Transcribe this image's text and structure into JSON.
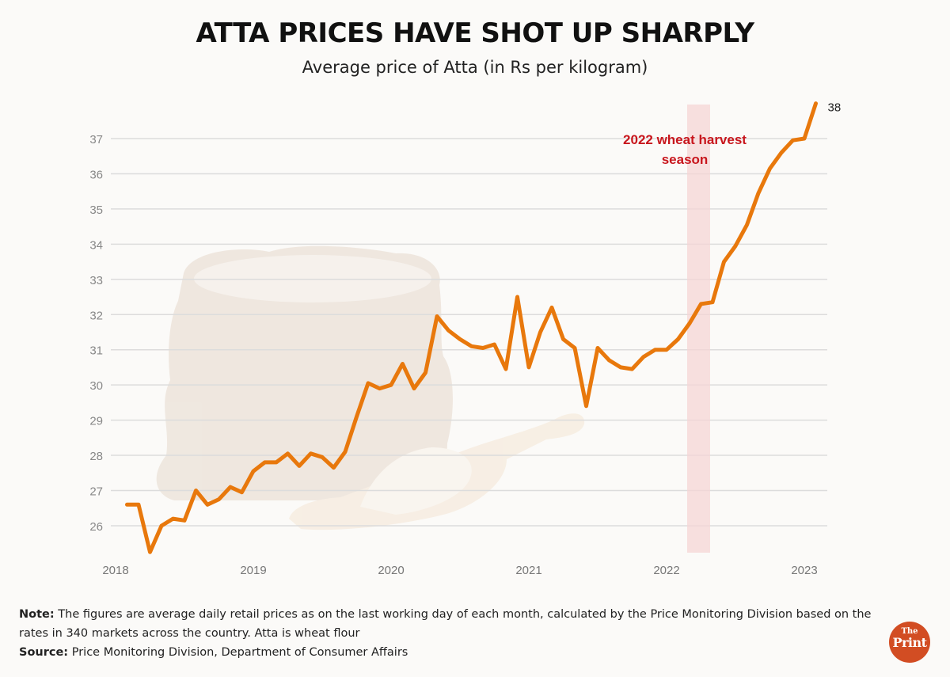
{
  "header": {
    "title": "ATTA PRICES HAVE SHOT UP SHARPLY",
    "subtitle": "Average price of Atta (in Rs per kilogram)"
  },
  "chart_data": {
    "type": "line",
    "title": "ATTA PRICES HAVE SHOT UP SHARPLY",
    "subtitle": "Average price of Atta (in Rs per kilogram)",
    "xlabel": "",
    "ylabel": "",
    "x_start": "2018-02",
    "x_frequency": "monthly",
    "x_ticks": [
      "2018",
      "2019",
      "2020",
      "2021",
      "2022",
      "2023"
    ],
    "y_ticks": [
      26,
      27,
      28,
      29,
      30,
      31,
      32,
      33,
      34,
      35,
      36,
      37
    ],
    "ylim": [
      25,
      38
    ],
    "grid": "horizontal",
    "line_color": "#e8780c",
    "series": [
      {
        "name": "Average price of Atta",
        "values": [
          26.6,
          26.6,
          25.25,
          26.0,
          26.2,
          26.15,
          27.0,
          26.6,
          26.75,
          27.1,
          26.95,
          27.55,
          27.8,
          27.8,
          28.05,
          27.7,
          28.05,
          27.95,
          27.65,
          28.1,
          29.1,
          30.05,
          29.9,
          30.0,
          30.6,
          29.9,
          30.35,
          31.95,
          31.55,
          31.3,
          31.1,
          31.05,
          31.15,
          30.45,
          32.5,
          30.5,
          31.5,
          32.2,
          31.3,
          31.05,
          29.4,
          31.05,
          30.7,
          30.5,
          30.45,
          30.8,
          31.0,
          31.0,
          31.3,
          31.75,
          32.3,
          32.35,
          33.5,
          33.95,
          34.55,
          35.45,
          36.15,
          36.6,
          36.95,
          37.0,
          38.0
        ]
      }
    ],
    "end_label": "38",
    "annotations": [
      {
        "type": "shaded-band",
        "label": "2022 wheat harvest season",
        "label_lines": [
          "2022 wheat harvest",
          "season"
        ],
        "x_range_months": [
          "2022-03",
          "2022-05"
        ],
        "color": "#f5d5d5",
        "text_color": "#c8161d"
      }
    ]
  },
  "footer": {
    "note_label": "Note:",
    "note_text": " The figures are average daily retail prices as on the last working day of each month, calculated by the Price Monitoring Division based on the rates in 340 markets across the country. Atta is wheat flour",
    "source_label": "Source:",
    "source_text": " Price Monitoring Division, Department of Consumer Affairs",
    "logo_top": "The",
    "logo_bottom": "Print"
  }
}
